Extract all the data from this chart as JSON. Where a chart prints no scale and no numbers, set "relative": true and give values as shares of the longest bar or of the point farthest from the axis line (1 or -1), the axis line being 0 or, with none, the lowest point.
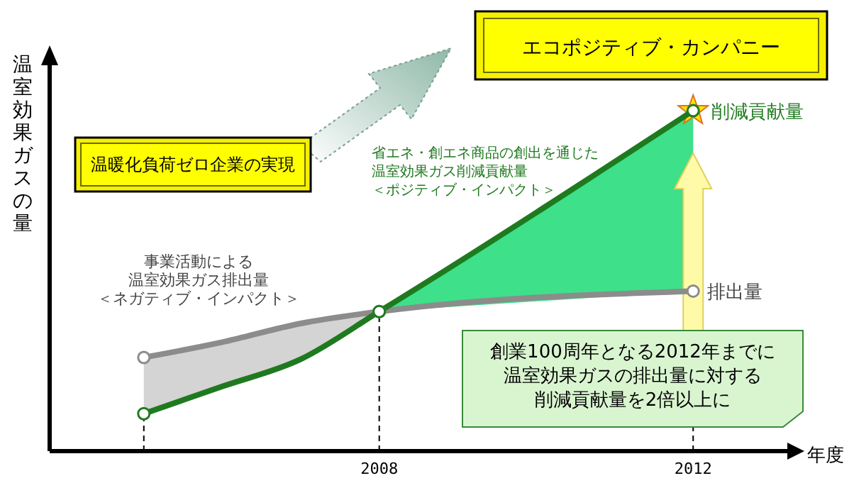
{
  "chart_data": {
    "type": "line",
    "relative": true,
    "title": "エコポジティブ・カンパニー",
    "ylabel": "温室効果ガスの量",
    "xlabel": "年度",
    "xlim": [
      2003.8,
      2013.2
    ],
    "xticks": [
      2008,
      2012
    ],
    "marker": "circle",
    "series": [
      {
        "name": "排出量",
        "color": "#8c8c8c",
        "x": [
          2005,
          2006,
          2007,
          2008,
          2012
        ],
        "values": [
          0.275,
          0.32,
          0.375,
          0.41,
          0.47
        ]
      },
      {
        "name": "削減貢献量",
        "color": "#1f7a1f",
        "x": [
          2005,
          2006,
          2007,
          2008,
          2012
        ],
        "values": [
          0.11,
          0.19,
          0.27,
          0.41,
          1.0
        ]
      }
    ],
    "ref_lines": [
      {
        "axis": "x",
        "value": 2005,
        "line_style": "dashed"
      },
      {
        "axis": "x",
        "value": 2008,
        "line_style": "dashed"
      },
      {
        "axis": "x",
        "value": 2012,
        "line_style": "dashed"
      }
    ],
    "annotations": [
      "温暖化負荷ゼロ企業の実現",
      "事業活動による",
      "温室効果ガス排出量",
      "＜ネガティブ・インパクト＞",
      "省エネ・創エネ商品の創出を通じた",
      "温室効果ガス削減貢献量",
      "＜ポジティブ・インパクト＞",
      "創業100周年となる2012年までに",
      "温室効果ガスの排出量に対する",
      "削減貢献量を2倍以上に"
    ]
  }
}
